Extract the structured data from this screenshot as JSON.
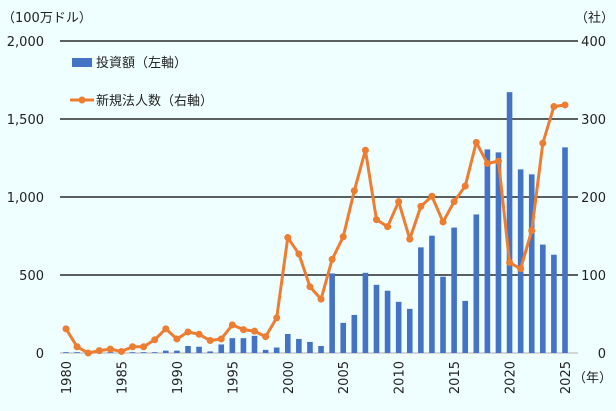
{
  "chart_data": {
    "type": "bar+line",
    "left_unit": "（100万ドル）",
    "right_unit": "（社）",
    "x_unit": "（年）",
    "x": [
      1980,
      1981,
      1982,
      1983,
      1984,
      1985,
      1986,
      1987,
      1988,
      1989,
      1990,
      1991,
      1992,
      1993,
      1994,
      1995,
      1996,
      1997,
      1998,
      1999,
      2000,
      2001,
      2002,
      2003,
      2004,
      2005,
      2006,
      2007,
      2008,
      2009,
      2010,
      2011,
      2012,
      2013,
      2014,
      2015,
      2016,
      2017,
      2018,
      2019,
      2020,
      2021,
      2022,
      2023,
      2024,
      2025
    ],
    "x_tick_labels": [
      "1980",
      "1985",
      "1990",
      "1995",
      "2000",
      "2005",
      "2010",
      "2015",
      "2020",
      "2025"
    ],
    "left_ylim": [
      0,
      2000
    ],
    "left_ticks": [
      "0",
      "500",
      "1,000",
      "1,500",
      "2,000"
    ],
    "right_ylim": [
      0,
      400
    ],
    "right_ticks": [
      "0",
      "100",
      "200",
      "300",
      "400"
    ],
    "grid": true,
    "legend_position": "top-left",
    "series": [
      {
        "name": "投資額（左軸）",
        "type": "bar",
        "axis": "left",
        "color": "#4472c4",
        "values": [
          5,
          5,
          0,
          5,
          5,
          5,
          5,
          5,
          5,
          15,
          15,
          45,
          40,
          10,
          55,
          95,
          95,
          110,
          20,
          35,
          122,
          90,
          71,
          45,
          510,
          193,
          244,
          514,
          437,
          399,
          328,
          283,
          677,
          752,
          489,
          804,
          334,
          888,
          1305,
          1286,
          1672,
          1177,
          1145,
          695,
          630,
          1318
        ]
      },
      {
        "name": "新規法人数（右軸）",
        "type": "line",
        "axis": "right",
        "color": "#ed7d31",
        "values": [
          31,
          8,
          0,
          3,
          5,
          2,
          8,
          8,
          17,
          31,
          18,
          27,
          24,
          16,
          18,
          36,
          30,
          28,
          21,
          45,
          148,
          127,
          85,
          69,
          120,
          149,
          208,
          260,
          171,
          162,
          194,
          146,
          188,
          201,
          168,
          194,
          214,
          270,
          243,
          246,
          116,
          108,
          157,
          269,
          316,
          318
        ]
      }
    ]
  }
}
